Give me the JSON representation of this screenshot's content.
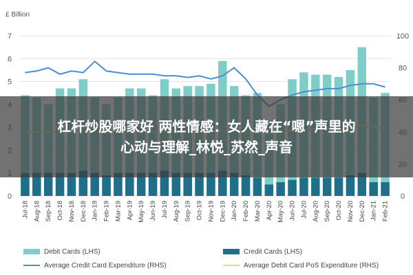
{
  "overlay": {
    "line1": "杠杆炒股哪家好 两性情感：女人藏在“嗯”声里的",
    "line2": "心动与理解_林悦_苏然_声音"
  },
  "colors": {
    "debit": "#7ecdc8",
    "credit": "#1f6f8b",
    "avg_credit": "#4a8ed0",
    "avg_debit": "#cfe08c"
  },
  "chart_data": {
    "type": "bar",
    "left_axis_unit": "£ Billion",
    "ylim_left": [
      0,
      7
    ],
    "ylim_right": [
      0,
      100
    ],
    "yticks_left": [
      "0",
      "1",
      "2",
      "3",
      "4",
      "5",
      "6",
      "7"
    ],
    "yticks_right": [
      "0",
      "20",
      "40",
      "60",
      "80",
      "100"
    ],
    "categories": [
      "Jul-18",
      "Aug-18",
      "Sep-18",
      "Oct-18",
      "Nov-18",
      "Dec-18",
      "Jan-19",
      "Feb-19",
      "Mar-19",
      "Apr-19",
      "May-19",
      "Jun-19",
      "Jul-19",
      "Aug-19",
      "Sep-19",
      "Oct-19",
      "Nov-19",
      "Dec-19",
      "Jan-20",
      "Feb-20",
      "Mar-20",
      "Apr-20",
      "May-20",
      "Jun-20",
      "Jul-20",
      "Aug-20",
      "Sep-20",
      "Oct-20",
      "Nov-20",
      "Dec-20",
      "Jan-21",
      "Feb-21"
    ],
    "series": [
      {
        "name": "Debit Cards (LHS)",
        "type": "bar",
        "axis": "left",
        "values": [
          4.4,
          4.3,
          4.0,
          4.7,
          4.7,
          5.1,
          4.3,
          4.0,
          4.3,
          4.7,
          4.7,
          4.4,
          5.1,
          4.7,
          4.8,
          4.8,
          4.9,
          5.9,
          4.8,
          4.4,
          4.5,
          3.3,
          4.0,
          5.1,
          5.4,
          5.3,
          5.3,
          5.2,
          5.5,
          6.5,
          4.3,
          4.5
        ]
      },
      {
        "name": "Credit Cards (LHS)",
        "type": "bar",
        "axis": "left",
        "values": [
          1.0,
          1.0,
          1.0,
          1.0,
          1.0,
          1.1,
          1.0,
          0.9,
          1.0,
          1.0,
          1.0,
          1.0,
          1.1,
          1.0,
          1.0,
          1.0,
          1.0,
          1.1,
          1.0,
          0.9,
          0.8,
          0.5,
          0.6,
          0.7,
          0.8,
          0.8,
          0.8,
          0.8,
          0.9,
          1.0,
          0.6,
          0.6
        ]
      },
      {
        "name": "Average Credit Card Expenditure (RHS)",
        "type": "line",
        "axis": "right",
        "values": [
          77,
          78,
          80,
          76,
          78,
          77,
          84,
          78,
          77,
          76,
          76,
          76,
          75,
          75,
          74,
          75,
          73,
          75,
          80,
          73,
          63,
          56,
          60,
          63,
          65,
          66,
          67,
          67,
          69,
          70,
          70,
          68
        ]
      },
      {
        "name": "Average Debit Card PoS Expenditure (RHS)",
        "type": "line",
        "axis": "right",
        "values": [
          40,
          40,
          40,
          40,
          41,
          42,
          42,
          41,
          41,
          40,
          40,
          40,
          40,
          40,
          41,
          40,
          40,
          41,
          41,
          40,
          40,
          39,
          40,
          41,
          41,
          42,
          42,
          41,
          42,
          44,
          43,
          42
        ]
      }
    ]
  }
}
